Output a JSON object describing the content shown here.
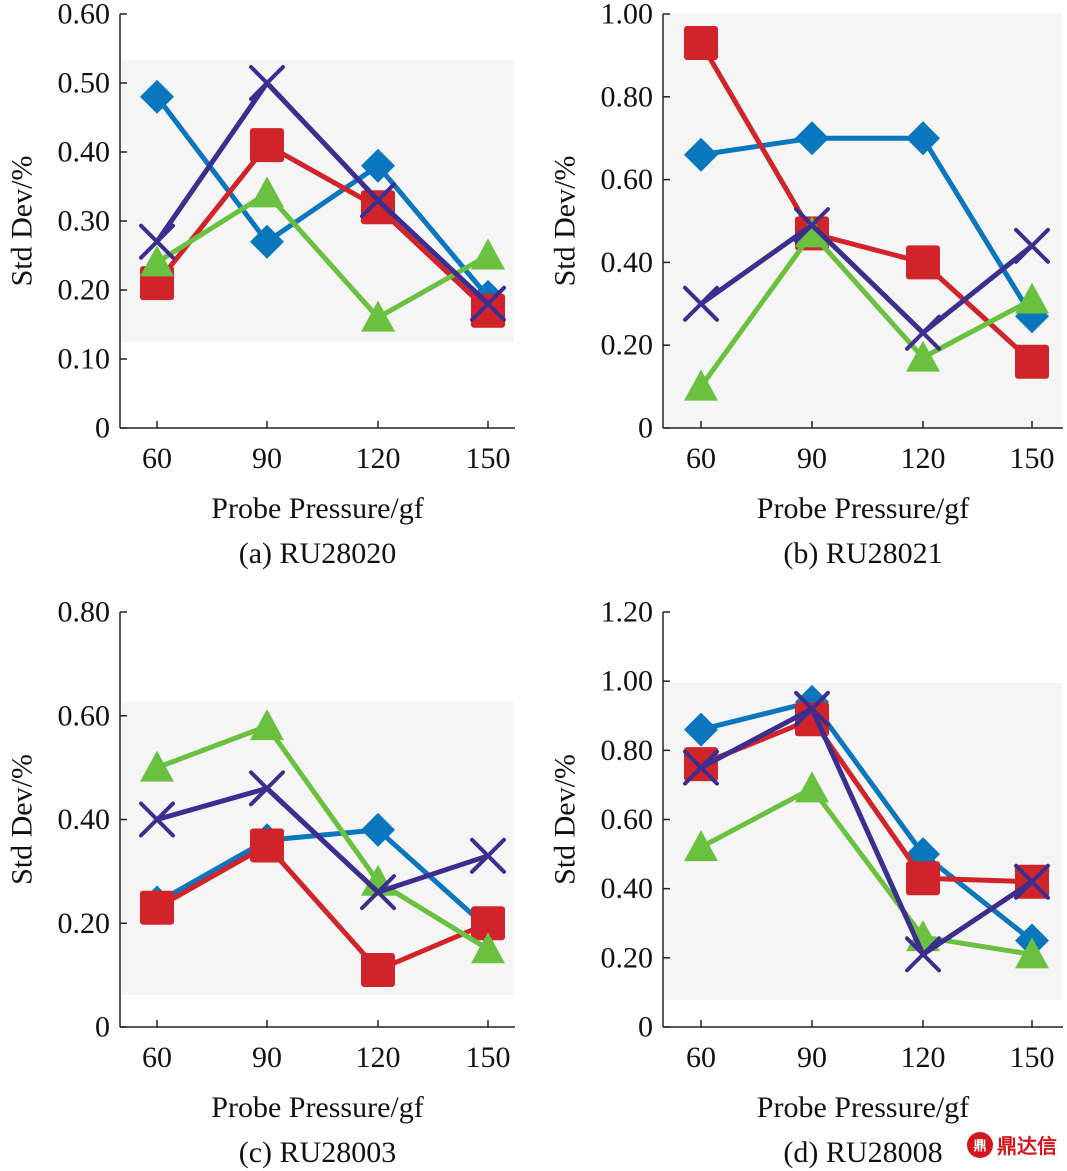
{
  "colors": {
    "series_diamond": "#0a76bd",
    "series_square": "#d1232a",
    "series_triangle": "#6ac03f",
    "series_cross": "#3b2e8e",
    "axis": "#222222",
    "plot_bg": "#f5f5f5",
    "watermark": "#d4171e"
  },
  "watermark": {
    "logo_icon": "鼎",
    "text": "鼎达信"
  },
  "chart_data": [
    {
      "type": "line",
      "panel": "a",
      "caption": "(a) RU28020",
      "xlabel": "Probe Pressure/gf",
      "ylabel": "Std Dev/%",
      "categories": [
        "60",
        "90",
        "120",
        "150"
      ],
      "ylim": [
        0,
        0.6
      ],
      "yticks": [
        "0",
        "0.10",
        "0.20",
        "0.30",
        "0.40",
        "0.50",
        "0.60"
      ],
      "series": [
        {
          "name": "diamond",
          "marker": "diamond",
          "values": [
            0.48,
            0.27,
            0.38,
            0.19
          ]
        },
        {
          "name": "square",
          "marker": "square",
          "values": [
            0.21,
            0.41,
            0.32,
            0.17
          ]
        },
        {
          "name": "triangle",
          "marker": "triangle",
          "values": [
            0.24,
            0.34,
            0.16,
            0.25
          ]
        },
        {
          "name": "cross",
          "marker": "cross",
          "values": [
            0.27,
            0.5,
            0.33,
            0.18
          ]
        }
      ]
    },
    {
      "type": "line",
      "panel": "b",
      "caption": "(b) RU28021",
      "xlabel": "Probe Pressure/gf",
      "ylabel": "Std Dev/%",
      "categories": [
        "60",
        "90",
        "120",
        "150"
      ],
      "ylim": [
        0,
        1.0
      ],
      "yticks": [
        "0",
        "0.20",
        "0.40",
        "0.60",
        "0.80",
        "1.00"
      ],
      "series": [
        {
          "name": "diamond",
          "marker": "diamond",
          "values": [
            0.66,
            0.7,
            0.7,
            0.27
          ]
        },
        {
          "name": "square",
          "marker": "square",
          "values": [
            0.93,
            0.47,
            0.4,
            0.16
          ]
        },
        {
          "name": "triangle",
          "marker": "triangle",
          "values": [
            0.1,
            0.47,
            0.17,
            0.31
          ]
        },
        {
          "name": "cross",
          "marker": "cross",
          "values": [
            0.3,
            0.49,
            0.23,
            0.44
          ]
        }
      ]
    },
    {
      "type": "line",
      "panel": "c",
      "caption": "(c) RU28003",
      "xlabel": "Probe Pressure/gf",
      "ylabel": "Std Dev/%",
      "categories": [
        "60",
        "90",
        "120",
        "150"
      ],
      "ylim": [
        0,
        0.8
      ],
      "yticks": [
        "0",
        "0.20",
        "0.40",
        "0.60",
        "0.80"
      ],
      "series": [
        {
          "name": "diamond",
          "marker": "diamond",
          "values": [
            0.24,
            0.36,
            0.38,
            0.19
          ]
        },
        {
          "name": "square",
          "marker": "square",
          "values": [
            0.23,
            0.35,
            0.11,
            0.2
          ]
        },
        {
          "name": "triangle",
          "marker": "triangle",
          "values": [
            0.5,
            0.58,
            0.28,
            0.15
          ]
        },
        {
          "name": "cross",
          "marker": "cross",
          "values": [
            0.4,
            0.46,
            0.26,
            0.33
          ]
        }
      ]
    },
    {
      "type": "line",
      "panel": "d",
      "caption": "(d) RU28008",
      "xlabel": "Probe Pressure/gf",
      "ylabel": "Std Dev/%",
      "categories": [
        "60",
        "90",
        "120",
        "150"
      ],
      "ylim": [
        0,
        1.2
      ],
      "yticks": [
        "0",
        "0.20",
        "0.40",
        "0.60",
        "0.80",
        "1.00",
        "1.20"
      ],
      "series": [
        {
          "name": "diamond",
          "marker": "diamond",
          "values": [
            0.86,
            0.94,
            0.5,
            0.25
          ]
        },
        {
          "name": "square",
          "marker": "square",
          "values": [
            0.76,
            0.89,
            0.43,
            0.42
          ]
        },
        {
          "name": "triangle",
          "marker": "triangle",
          "values": [
            0.52,
            0.69,
            0.26,
            0.21
          ]
        },
        {
          "name": "cross",
          "marker": "cross",
          "values": [
            0.75,
            0.92,
            0.21,
            0.42
          ]
        }
      ]
    }
  ]
}
